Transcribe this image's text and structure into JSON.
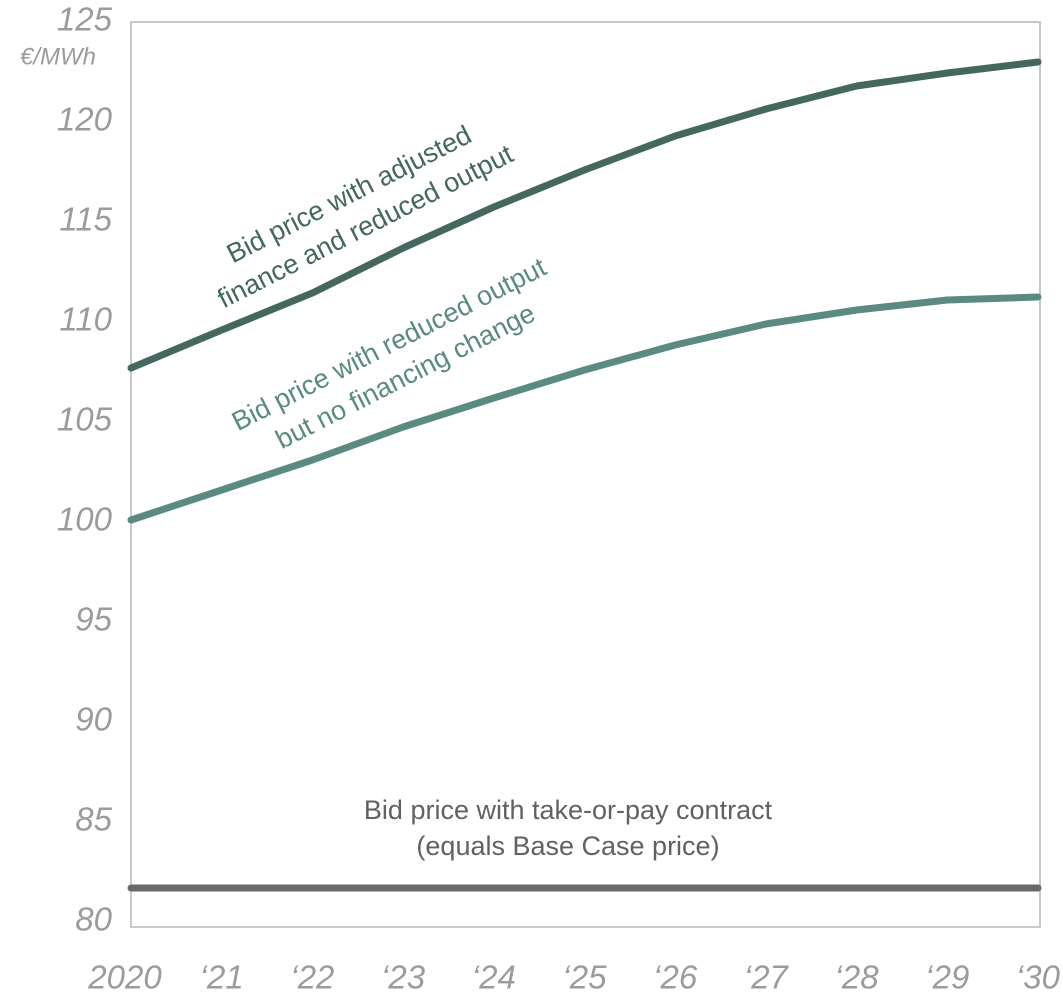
{
  "chart_data": {
    "type": "line",
    "y_label": "€/MWh",
    "x": [
      "2020",
      "‘21",
      "‘22",
      "‘23",
      "‘24",
      "‘25",
      "‘26",
      "‘27",
      "‘28",
      "‘29",
      "‘30"
    ],
    "ylim": [
      80,
      125
    ],
    "yticks": [
      80,
      85,
      90,
      95,
      100,
      105,
      110,
      115,
      120,
      125
    ],
    "grid": false,
    "series": [
      {
        "name": "Bid price with adjusted finance and reduced output",
        "color": "#44685f",
        "values": [
          107.7,
          109.6,
          111.45,
          113.7,
          115.75,
          117.6,
          119.3,
          120.65,
          121.8,
          122.45,
          123.0
        ]
      },
      {
        "name": "Bid price with reduced output but no financing change",
        "color": "#5a8a80",
        "values": [
          100.1,
          101.6,
          103.1,
          104.75,
          106.2,
          107.6,
          108.85,
          109.9,
          110.6,
          111.1,
          111.25
        ]
      },
      {
        "name": "Bid price with take-or-pay contract (equals Base Case price)",
        "color": "#67696c",
        "values": [
          81.7,
          81.7,
          81.7,
          81.7,
          81.7,
          81.7,
          81.7,
          81.7,
          81.7,
          81.7,
          81.7
        ]
      }
    ],
    "annotations": [
      {
        "lines": [
          "Bid price with adjusted",
          "finance and reduced output"
        ],
        "color": "#44685f",
        "rotate": -27
      },
      {
        "lines": [
          "Bid price with reduced output",
          "but no financing change"
        ],
        "color": "#5a8a80",
        "rotate": -27
      },
      {
        "lines": [
          "Bid price with take-or-pay contract",
          "(equals Base Case price)"
        ],
        "color": "#5f6164",
        "rotate": 0
      }
    ]
  }
}
